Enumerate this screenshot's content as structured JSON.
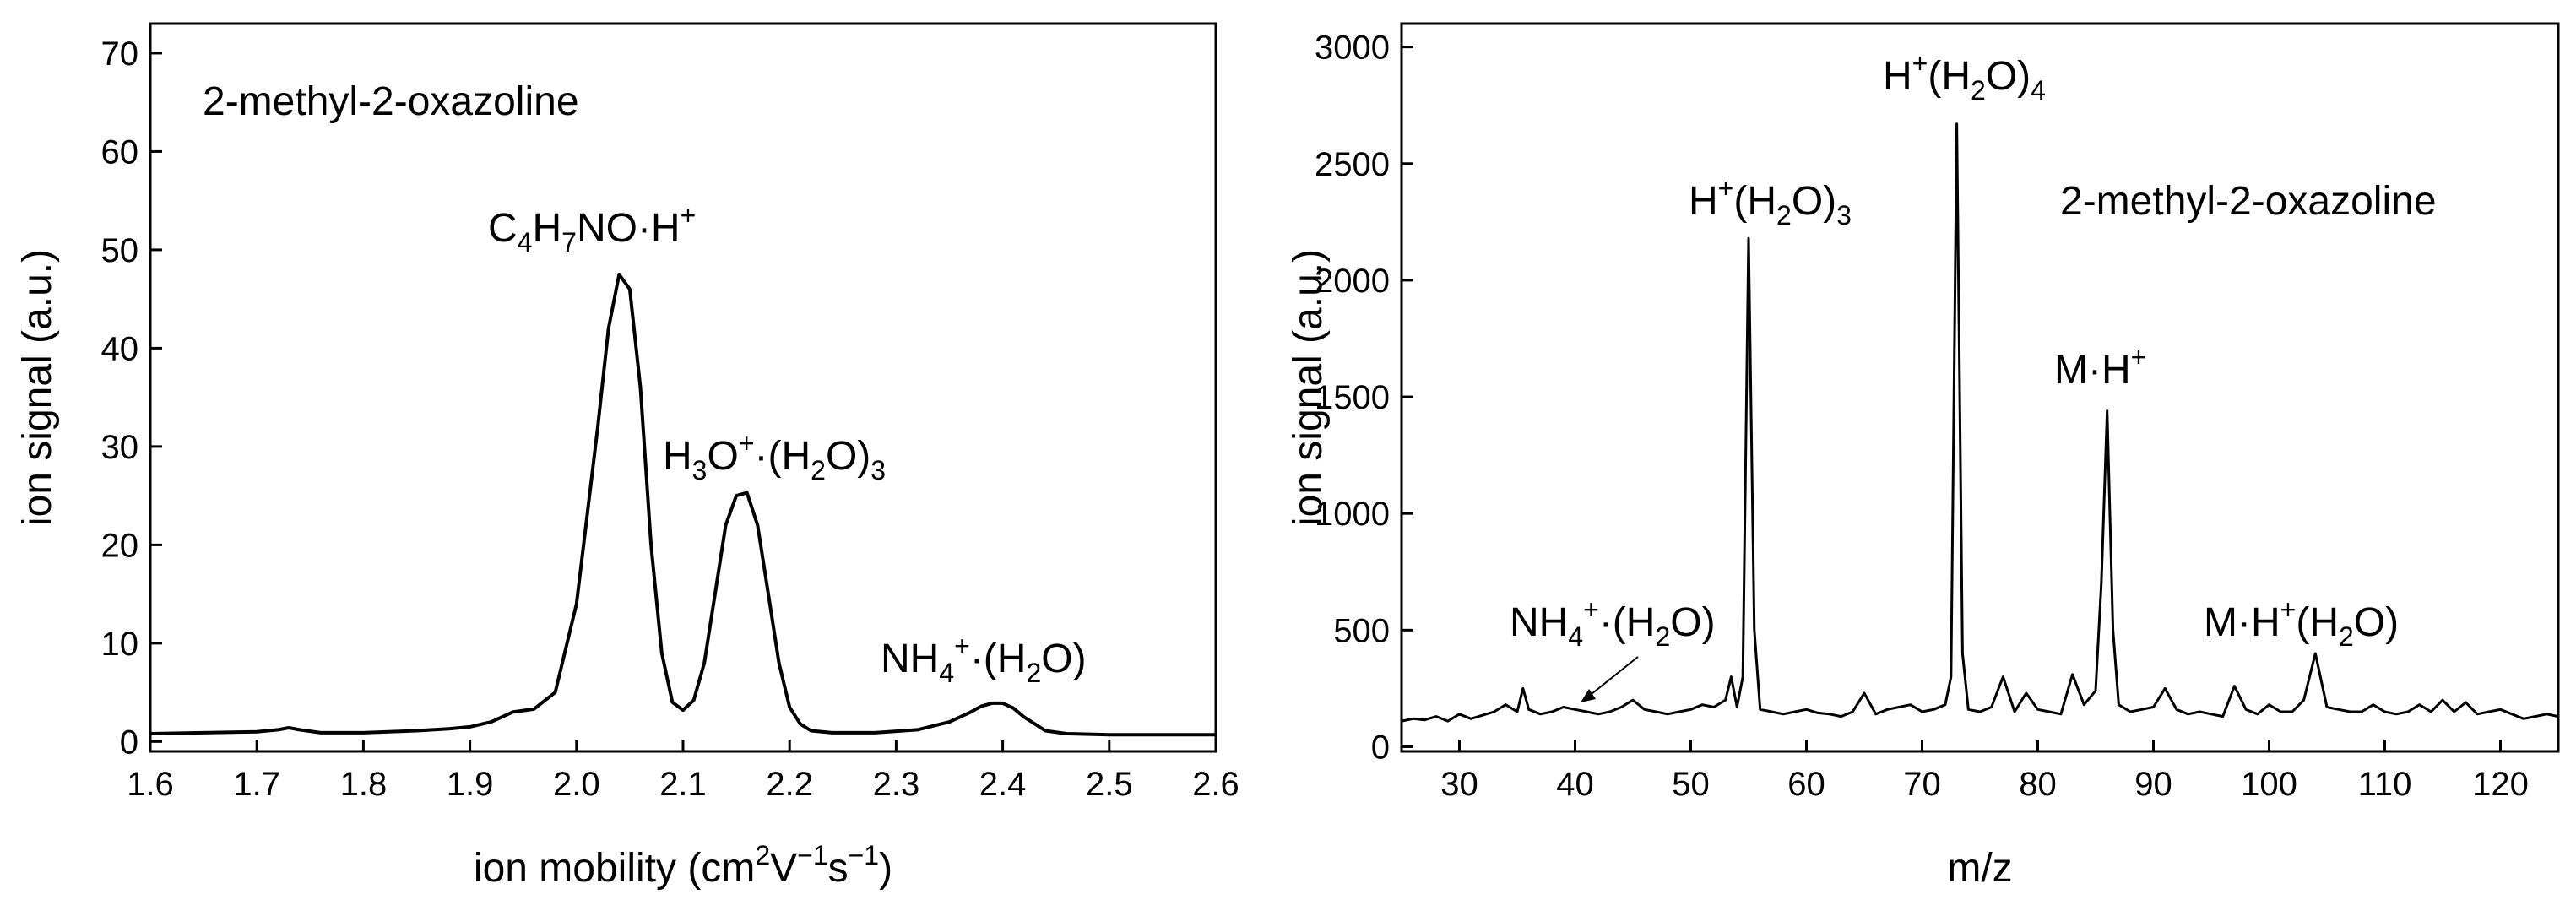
{
  "chart_data": [
    {
      "type": "line",
      "title": "",
      "xlabel_parts": [
        {
          "t": "ion mobility (cm"
        },
        {
          "t": "2",
          "s": "sup"
        },
        {
          "t": "V"
        },
        {
          "t": "−1",
          "s": "sup"
        },
        {
          "t": "s"
        },
        {
          "t": "−1",
          "s": "sup"
        },
        {
          "t": ")"
        }
      ],
      "ylabel": "ion signal (a.u.)",
      "xlim": [
        1.6,
        2.6
      ],
      "ylim": [
        -1,
        73
      ],
      "x_ticks": [
        1.6,
        1.7,
        1.8,
        1.9,
        2.0,
        2.1,
        2.2,
        2.3,
        2.4,
        2.5,
        2.6
      ],
      "y_ticks": [
        0,
        10,
        20,
        30,
        40,
        50,
        60,
        70
      ],
      "x_tick_labels": [
        "1.6",
        "1.7",
        "1.8",
        "1.9",
        "2.0",
        "2.1",
        "2.2",
        "2.3",
        "2.4",
        "2.5",
        "2.6"
      ],
      "y_tick_labels": [
        "0",
        "10",
        "20",
        "30",
        "40",
        "50",
        "60",
        "70"
      ],
      "grid": false,
      "legend": "none",
      "series": [
        {
          "x": [
            1.6,
            1.65,
            1.7,
            1.72,
            1.73,
            1.74,
            1.76,
            1.8,
            1.85,
            1.88,
            1.9,
            1.92,
            1.94,
            1.96,
            1.98,
            2.0,
            2.02,
            2.03,
            2.04,
            2.05,
            2.06,
            2.07,
            2.08,
            2.09,
            2.1,
            2.11,
            2.12,
            2.13,
            2.14,
            2.15,
            2.16,
            2.17,
            2.18,
            2.19,
            2.2,
            2.21,
            2.22,
            2.24,
            2.28,
            2.32,
            2.35,
            2.37,
            2.38,
            2.39,
            2.4,
            2.41,
            2.42,
            2.44,
            2.46,
            2.5,
            2.55,
            2.6
          ],
          "y": [
            0.8,
            0.9,
            1.0,
            1.2,
            1.4,
            1.2,
            0.9,
            0.9,
            1.1,
            1.3,
            1.5,
            2.0,
            3.0,
            3.3,
            5.0,
            14,
            32,
            42,
            47.5,
            46,
            36,
            20,
            9,
            4,
            3.2,
            4.2,
            8,
            15,
            22,
            25,
            25.3,
            22,
            15,
            8,
            3.5,
            1.8,
            1.1,
            0.9,
            0.9,
            1.2,
            2.0,
            3.0,
            3.6,
            3.9,
            3.9,
            3.4,
            2.5,
            1.1,
            0.8,
            0.7,
            0.7,
            0.7
          ]
        }
      ]
    },
    {
      "type": "line",
      "title": "",
      "xlabel_parts": [
        {
          "t": "m/z"
        }
      ],
      "ylabel": "ion signal (a.u.)",
      "xlim": [
        25,
        125
      ],
      "ylim": [
        -20,
        3100
      ],
      "x_ticks": [
        30,
        40,
        50,
        60,
        70,
        80,
        90,
        100,
        110,
        120
      ],
      "y_ticks": [
        0,
        500,
        1000,
        1500,
        2000,
        2500,
        3000
      ],
      "x_tick_labels": [
        "30",
        "40",
        "50",
        "60",
        "70",
        "80",
        "90",
        "100",
        "110",
        "120"
      ],
      "y_tick_labels": [
        "0",
        "500",
        "1000",
        "1500",
        "2000",
        "2500",
        "3000"
      ],
      "grid": false,
      "legend": "none",
      "series": [
        {
          "x": [
            25,
            26,
            27,
            28,
            29,
            30,
            31,
            32,
            33,
            34,
            35,
            35.5,
            36,
            37,
            38,
            39,
            40,
            41,
            42,
            43,
            44,
            45,
            46,
            47,
            48,
            49,
            50,
            51,
            52,
            53,
            53.5,
            54,
            54.5,
            55,
            55.5,
            56,
            57,
            58,
            59,
            60,
            61,
            62,
            63,
            64,
            65,
            66,
            67,
            68,
            69,
            70,
            71,
            72,
            72.5,
            73,
            73.5,
            74,
            75,
            76,
            77,
            78,
            79,
            80,
            81,
            82,
            83,
            84,
            85,
            85.5,
            86,
            86.5,
            87,
            88,
            89,
            90,
            91,
            92,
            93,
            94,
            95,
            96,
            97,
            98,
            99,
            100,
            101,
            102,
            103,
            104,
            105,
            106,
            107,
            108,
            109,
            110,
            111,
            112,
            113,
            114,
            115,
            116,
            117,
            118,
            119,
            120,
            121,
            122,
            123,
            124,
            125
          ],
          "y": [
            110,
            120,
            115,
            130,
            110,
            140,
            120,
            135,
            150,
            180,
            150,
            250,
            160,
            140,
            150,
            170,
            160,
            150,
            140,
            150,
            170,
            200,
            160,
            150,
            140,
            150,
            160,
            180,
            170,
            200,
            300,
            170,
            300,
            2180,
            500,
            160,
            150,
            140,
            150,
            160,
            145,
            140,
            130,
            150,
            230,
            140,
            160,
            170,
            180,
            150,
            160,
            180,
            300,
            2670,
            400,
            160,
            150,
            170,
            300,
            150,
            230,
            160,
            150,
            140,
            310,
            180,
            240,
            700,
            1440,
            500,
            180,
            150,
            160,
            170,
            250,
            160,
            140,
            150,
            140,
            130,
            260,
            160,
            140,
            180,
            150,
            150,
            200,
            400,
            170,
            160,
            150,
            150,
            180,
            150,
            140,
            150,
            180,
            150,
            200,
            150,
            190,
            140,
            150,
            160,
            140,
            120,
            130,
            140,
            130
          ]
        }
      ]
    }
  ],
  "left_annotations": {
    "compound": [
      {
        "t": "2-methyl-2-oxazoline"
      }
    ],
    "peak1": [
      {
        "t": "C"
      },
      {
        "t": "4",
        "s": "sub"
      },
      {
        "t": "H"
      },
      {
        "t": "7",
        "s": "sub"
      },
      {
        "t": "NO·H"
      },
      {
        "t": "+",
        "s": "sup"
      }
    ],
    "peak2": [
      {
        "t": "H"
      },
      {
        "t": "3",
        "s": "sub"
      },
      {
        "t": "O"
      },
      {
        "t": "+",
        "s": "sup"
      },
      {
        "t": "·(H"
      },
      {
        "t": "2",
        "s": "sub"
      },
      {
        "t": "O)"
      },
      {
        "t": "3",
        "s": "sub"
      }
    ],
    "peak3": [
      {
        "t": "NH"
      },
      {
        "t": "4",
        "s": "sub"
      },
      {
        "t": "+",
        "s": "sup"
      },
      {
        "t": "·(H"
      },
      {
        "t": "2",
        "s": "sub"
      },
      {
        "t": "O)"
      }
    ]
  },
  "right_annotations": {
    "compound": [
      {
        "t": "2-methyl-2-oxazoline"
      }
    ],
    "h4": [
      {
        "t": "H"
      },
      {
        "t": "+",
        "s": "sup"
      },
      {
        "t": "(H"
      },
      {
        "t": "2",
        "s": "sub"
      },
      {
        "t": "O)"
      },
      {
        "t": "4",
        "s": "sub"
      }
    ],
    "h3": [
      {
        "t": "H"
      },
      {
        "t": "+",
        "s": "sup"
      },
      {
        "t": "(H"
      },
      {
        "t": "2",
        "s": "sub"
      },
      {
        "t": "O)"
      },
      {
        "t": "3",
        "s": "sub"
      }
    ],
    "mh": [
      {
        "t": "M·H"
      },
      {
        "t": "+",
        "s": "sup"
      }
    ],
    "mhh2o": [
      {
        "t": "M·H"
      },
      {
        "t": "+",
        "s": "sup"
      },
      {
        "t": "(H"
      },
      {
        "t": "2",
        "s": "sub"
      },
      {
        "t": "O)"
      }
    ],
    "nh4": [
      {
        "t": "NH"
      },
      {
        "t": "4",
        "s": "sub"
      },
      {
        "t": "+",
        "s": "sup"
      },
      {
        "t": "·(H"
      },
      {
        "t": "2",
        "s": "sub"
      },
      {
        "t": "O)"
      }
    ]
  }
}
